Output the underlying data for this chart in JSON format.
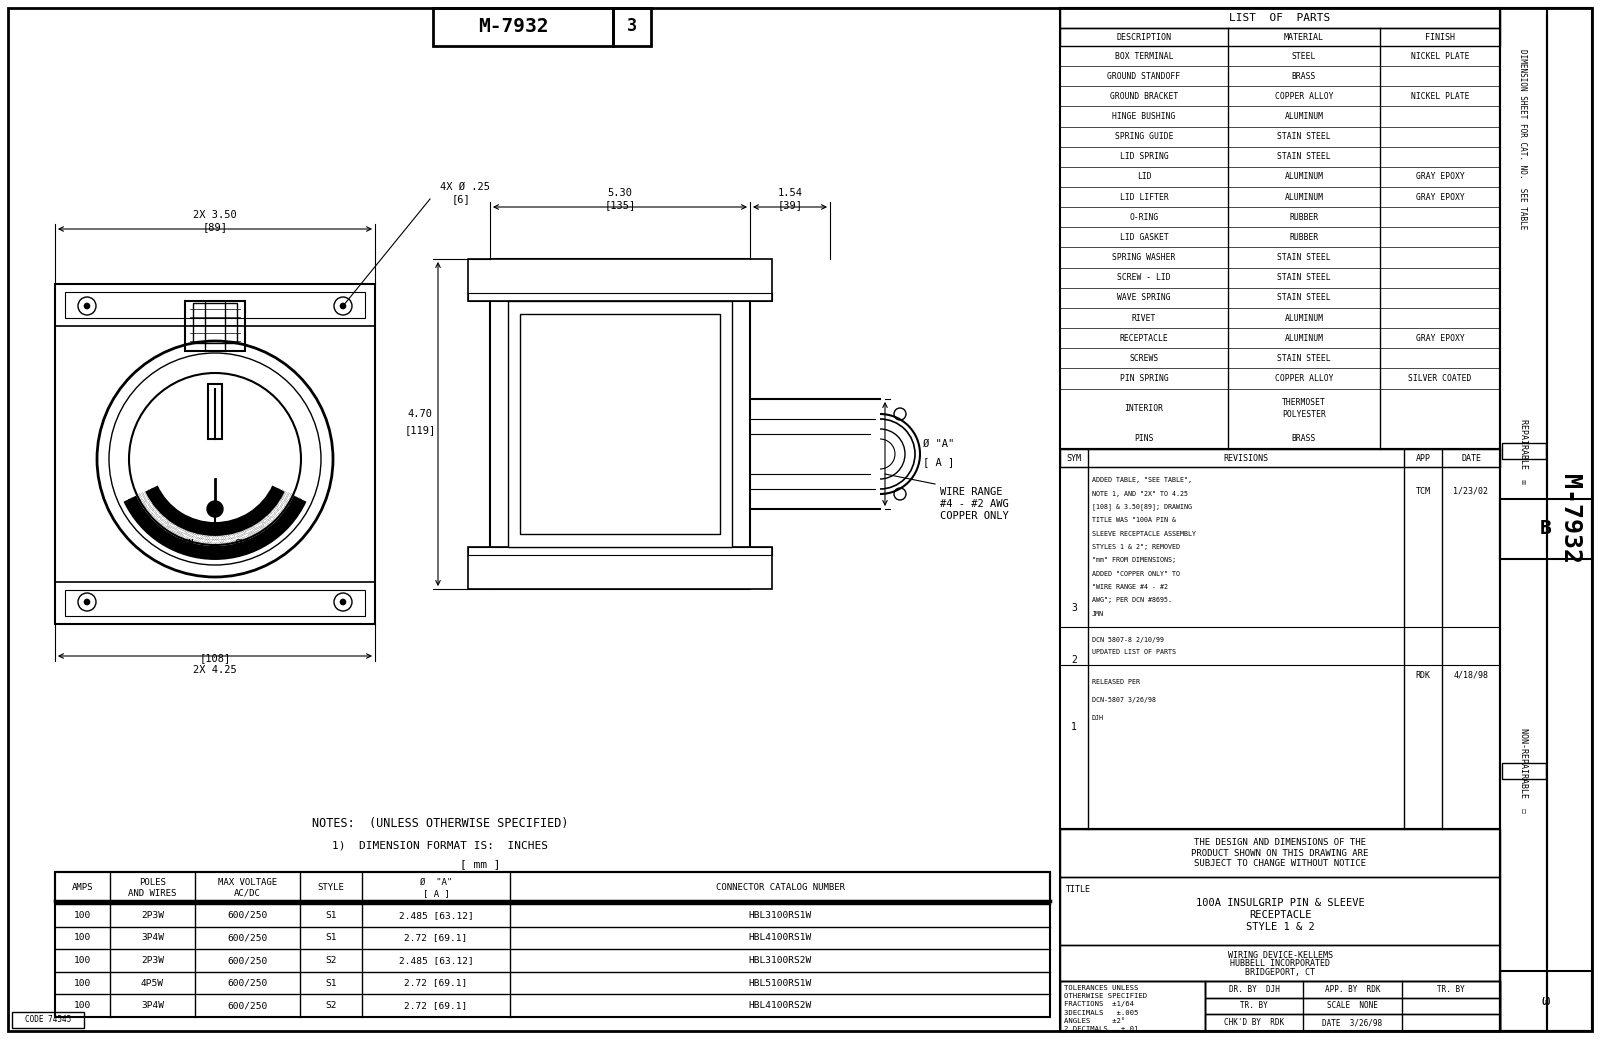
{
  "title": "M-7932",
  "sheet_num": "3",
  "bg_color": "#ffffff",
  "list_of_parts": {
    "rows": [
      [
        "BOX TERMINAL",
        "STEEL",
        "NICKEL PLATE"
      ],
      [
        "GROUND STANDOFF",
        "BRASS",
        ""
      ],
      [
        "GROUND BRACKET",
        "COPPER ALLOY",
        "NICKEL PLATE"
      ],
      [
        "HINGE BUSHING",
        "ALUMINUM",
        ""
      ],
      [
        "SPRING GUIDE",
        "STAIN STEEL",
        ""
      ],
      [
        "LID SPRING",
        "STAIN STEEL",
        ""
      ],
      [
        "LID",
        "ALUMINUM",
        "GRAY EPOXY"
      ],
      [
        "LID LIFTER",
        "ALUMINUM",
        "GRAY EPOXY"
      ],
      [
        "O-RING",
        "RUBBER",
        ""
      ],
      [
        "LID GASKET",
        "RUBBER",
        ""
      ],
      [
        "SPRING WASHER",
        "STAIN STEEL",
        ""
      ],
      [
        "SCREW - LID",
        "STAIN STEEL",
        ""
      ],
      [
        "WAVE SPRING",
        "STAIN STEEL",
        ""
      ],
      [
        "RIVET",
        "ALUMINUM",
        ""
      ],
      [
        "RECEPTACLE",
        "ALUMINUM",
        "GRAY EPOXY"
      ],
      [
        "SCREWS",
        "STAIN STEEL",
        ""
      ],
      [
        "PIN SPRING",
        "COPPER ALLOY",
        "SILVER COATED"
      ],
      [
        "INTERIOR",
        "THERMOSET\nPOLYESTER",
        ""
      ],
      [
        "PINS",
        "BRASS",
        ""
      ]
    ]
  },
  "revision_rows": [
    [
      "3",
      "ADDED TABLE, \"SEE TABLE\",\nNOTE 1, AND \"2X\" TO 4.25\n[108] & 3.50[89]; DRAWING\nTITLE WAS \"100A PIN &\nSLEEVE RECEPTACLE ASSEMBLY\nSTYLES 1 & 2\"; REMOVED\n\"mm\" FROM DIMENSIONS;\nADDED \"COPPER ONLY\" TO\n\"WIRE RANGE #4 - #2\nAWG\"; PER DCN #8695.\nJMN",
      "TCM",
      "1/23/02"
    ],
    [
      "2",
      "DCN 5807-8 2/10/99\nUPDATED LIST OF PARTS",
      "",
      ""
    ],
    [
      "1",
      "RELEASED PER\nDCN-5807 3/26/98\nDJH",
      "RDK",
      "4/18/98"
    ]
  ],
  "parts_table_rows": [
    [
      "100",
      "2P3W",
      "600/250",
      "S1",
      "2.485 [63.12]",
      "HBL3100RS1W"
    ],
    [
      "100",
      "3P4W",
      "600/250",
      "S1",
      "2.72 [69.1]",
      "HBL4100RS1W"
    ],
    [
      "100",
      "2P3W",
      "600/250",
      "S2",
      "2.485 [63.12]",
      "HBL3100RS2W"
    ],
    [
      "100",
      "4P5W",
      "600/250",
      "S1",
      "2.72 [69.1]",
      "HBL5100RS1W"
    ],
    [
      "100",
      "3P4W",
      "600/250",
      "S2",
      "2.72 [69.1]",
      "HBL4100RS2W"
    ]
  ],
  "drawing_title": "100A INSULGRIP PIN & SLEEVE\nRECEPTACLE\nSTYLE 1 & 2",
  "company_line1": "WIRING DEVICE-KELLEMS",
  "company_line2": "HUBBELL INCORPORATED",
  "company_line3": "BRIDGEPORT, CT",
  "tolerances_lines": [
    "TOLERANCES UNLESS",
    "OTHERWISE SPECIFIED",
    "FRACTIONS  ±1/64",
    "3DECIMALS   ±.005",
    "ANGLES     ±2°",
    "2 DECIMALS   ±.01"
  ],
  "wire_range": "WIRE RANGE\n#4 - #2 AWG\nCOPPER ONLY",
  "notes_line1": "NOTES:  (UNLESS OTHERWISE SPECIFIED)",
  "notes_line2": "1)  DIMENSION FORMAT IS:  INCHES",
  "notes_line3": "[ mm ]",
  "code": "CODE 74545",
  "dim_sheet_text": "DIMENSION SHEET FOR CAT. NO.  SEE TABLE"
}
